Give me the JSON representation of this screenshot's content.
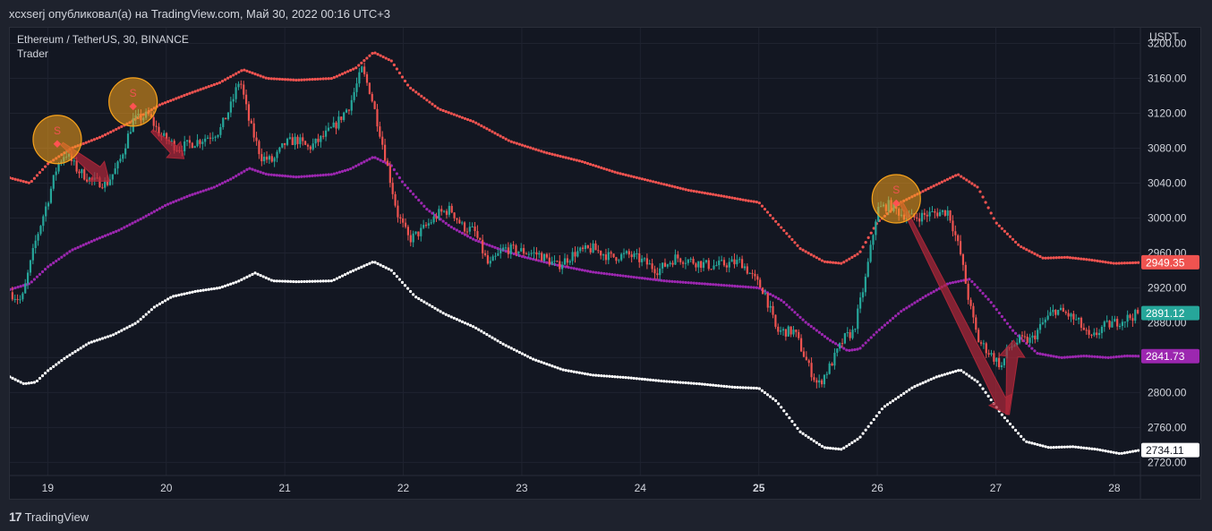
{
  "header": {
    "publish_line": "xcxserj опубликовал(а) на TradingView.com, Май 30, 2022 00:16 UTC+3"
  },
  "chart_meta": {
    "symbol_line": "Ethereum / TetherUS, 30, BINANCE",
    "indicator_name": "Trader",
    "currency": "USDT"
  },
  "footer": {
    "logo_text": "17",
    "brand": "TradingView"
  },
  "colors": {
    "background": "#131722",
    "up_candle": "#26a69a",
    "down_candle": "#ef5350",
    "upper_band": "#ef5350",
    "middle_band": "#9c27b0",
    "lower_band": "#ffffff",
    "signal_circle": "#f7a21b",
    "arrow": "#b2283a"
  },
  "chart_data": {
    "type": "candlestick",
    "yaxis": {
      "ticks": [
        "3200.00",
        "3160.00",
        "3120.00",
        "3080.00",
        "3040.00",
        "3000.00",
        "2960.00",
        "2920.00",
        "2880.00",
        "2840.00",
        "2800.00",
        "2760.00",
        "2720.00"
      ],
      "tick_values": [
        3200,
        3160,
        3120,
        3080,
        3040,
        3000,
        2960,
        2920,
        2880,
        2840,
        2800,
        2760,
        2720
      ],
      "ylim": [
        2705,
        3218
      ]
    },
    "xaxis": {
      "ticks": [
        "19",
        "20",
        "21",
        "22",
        "23",
        "24",
        "25",
        "26",
        "27",
        "28"
      ],
      "tick_positions_day": [
        19,
        20,
        21,
        22,
        23,
        24,
        25,
        26,
        27,
        28
      ],
      "bold_ticks": [
        "25"
      ],
      "xlim": [
        18.68,
        28.22
      ]
    },
    "price_labels": [
      {
        "name": "upper-band",
        "value": "2949.35",
        "bg": "#ef5350",
        "fg": "#ffffff"
      },
      {
        "name": "last-price",
        "value": "2891.12",
        "bg": "#26a69a",
        "fg": "#ffffff"
      },
      {
        "name": "middle-band",
        "value": "2841.73",
        "bg": "#9c27b0",
        "fg": "#ffffff"
      },
      {
        "name": "lower-band",
        "value": "2734.11",
        "bg": "#ffffff",
        "fg": "#131722"
      }
    ],
    "close_path": [
      [
        18.68,
        2915
      ],
      [
        18.78,
        2905
      ],
      [
        18.9,
        2975
      ],
      [
        19.0,
        3020
      ],
      [
        19.08,
        3060
      ],
      [
        19.15,
        3075
      ],
      [
        19.25,
        3055
      ],
      [
        19.38,
        3042
      ],
      [
        19.5,
        3040
      ],
      [
        19.6,
        3062
      ],
      [
        19.72,
        3112
      ],
      [
        19.85,
        3118
      ],
      [
        19.95,
        3095
      ],
      [
        20.1,
        3080
      ],
      [
        20.3,
        3090
      ],
      [
        20.45,
        3100
      ],
      [
        20.55,
        3130
      ],
      [
        20.62,
        3160
      ],
      [
        20.7,
        3110
      ],
      [
        20.8,
        3070
      ],
      [
        20.9,
        3065
      ],
      [
        21.0,
        3085
      ],
      [
        21.1,
        3090
      ],
      [
        21.2,
        3080
      ],
      [
        21.3,
        3090
      ],
      [
        21.42,
        3105
      ],
      [
        21.55,
        3130
      ],
      [
        21.65,
        3170
      ],
      [
        21.72,
        3145
      ],
      [
        21.8,
        3100
      ],
      [
        21.88,
        3050
      ],
      [
        21.95,
        3005
      ],
      [
        22.05,
        2975
      ],
      [
        22.15,
        2985
      ],
      [
        22.3,
        3005
      ],
      [
        22.4,
        3010
      ],
      [
        22.5,
        2990
      ],
      [
        22.6,
        2985
      ],
      [
        22.72,
        2945
      ],
      [
        22.85,
        2965
      ],
      [
        23.0,
        2962
      ],
      [
        23.15,
        2958
      ],
      [
        23.3,
        2945
      ],
      [
        23.45,
        2960
      ],
      [
        23.6,
        2965
      ],
      [
        23.75,
        2955
      ],
      [
        23.9,
        2958
      ],
      [
        24.0,
        2952
      ],
      [
        24.15,
        2940
      ],
      [
        24.3,
        2955
      ],
      [
        24.45,
        2950
      ],
      [
        24.6,
        2945
      ],
      [
        24.75,
        2948
      ],
      [
        24.85,
        2950
      ],
      [
        24.95,
        2932
      ],
      [
        25.05,
        2915
      ],
      [
        25.15,
        2870
      ],
      [
        25.3,
        2870
      ],
      [
        25.42,
        2830
      ],
      [
        25.5,
        2808
      ],
      [
        25.6,
        2830
      ],
      [
        25.72,
        2862
      ],
      [
        25.8,
        2870
      ],
      [
        25.9,
        2930
      ],
      [
        25.95,
        2970
      ],
      [
        26.0,
        3010
      ],
      [
        26.1,
        3015
      ],
      [
        26.2,
        3005
      ],
      [
        26.3,
        3000
      ],
      [
        26.45,
        3005
      ],
      [
        26.6,
        3008
      ],
      [
        26.7,
        2960
      ],
      [
        26.78,
        2900
      ],
      [
        26.85,
        2860
      ],
      [
        26.95,
        2845
      ],
      [
        27.05,
        2830
      ],
      [
        27.1,
        2850
      ],
      [
        27.2,
        2860
      ],
      [
        27.3,
        2860
      ],
      [
        27.4,
        2880
      ],
      [
        27.5,
        2895
      ],
      [
        27.6,
        2890
      ],
      [
        27.7,
        2880
      ],
      [
        27.8,
        2860
      ],
      [
        27.9,
        2875
      ],
      [
        28.0,
        2880
      ],
      [
        28.1,
        2885
      ],
      [
        28.22,
        2891
      ]
    ],
    "upper_band": [
      [
        18.68,
        3046
      ],
      [
        18.85,
        3040
      ],
      [
        19.0,
        3062
      ],
      [
        19.2,
        3080
      ],
      [
        19.45,
        3093
      ],
      [
        19.7,
        3110
      ],
      [
        19.95,
        3130
      ],
      [
        20.2,
        3143
      ],
      [
        20.45,
        3155
      ],
      [
        20.65,
        3170
      ],
      [
        20.85,
        3160
      ],
      [
        21.1,
        3158
      ],
      [
        21.4,
        3160
      ],
      [
        21.6,
        3172
      ],
      [
        21.75,
        3190
      ],
      [
        21.9,
        3180
      ],
      [
        22.05,
        3150
      ],
      [
        22.3,
        3125
      ],
      [
        22.6,
        3110
      ],
      [
        22.9,
        3088
      ],
      [
        23.2,
        3075
      ],
      [
        23.5,
        3065
      ],
      [
        23.8,
        3052
      ],
      [
        24.1,
        3042
      ],
      [
        24.4,
        3032
      ],
      [
        24.7,
        3025
      ],
      [
        24.9,
        3020
      ],
      [
        25.0,
        3018
      ],
      [
        25.15,
        2995
      ],
      [
        25.35,
        2965
      ],
      [
        25.55,
        2950
      ],
      [
        25.7,
        2948
      ],
      [
        25.85,
        2960
      ],
      [
        26.0,
        2995
      ],
      [
        26.2,
        3018
      ],
      [
        26.45,
        3035
      ],
      [
        26.68,
        3050
      ],
      [
        26.85,
        3035
      ],
      [
        27.0,
        2995
      ],
      [
        27.2,
        2968
      ],
      [
        27.4,
        2954
      ],
      [
        27.6,
        2955
      ],
      [
        27.8,
        2952
      ],
      [
        28.0,
        2948
      ],
      [
        28.22,
        2949
      ]
    ],
    "middle_band": [
      [
        18.68,
        2918
      ],
      [
        18.85,
        2925
      ],
      [
        19.0,
        2944
      ],
      [
        19.2,
        2963
      ],
      [
        19.4,
        2975
      ],
      [
        19.6,
        2986
      ],
      [
        19.8,
        3000
      ],
      [
        20.0,
        3015
      ],
      [
        20.2,
        3026
      ],
      [
        20.4,
        3035
      ],
      [
        20.55,
        3045
      ],
      [
        20.7,
        3057
      ],
      [
        20.85,
        3050
      ],
      [
        21.1,
        3047
      ],
      [
        21.4,
        3050
      ],
      [
        21.55,
        3056
      ],
      [
        21.75,
        3070
      ],
      [
        21.9,
        3060
      ],
      [
        22.0,
        3040
      ],
      [
        22.2,
        3010
      ],
      [
        22.4,
        2990
      ],
      [
        22.6,
        2975
      ],
      [
        22.8,
        2965
      ],
      [
        23.0,
        2956
      ],
      [
        23.3,
        2946
      ],
      [
        23.6,
        2938
      ],
      [
        23.9,
        2933
      ],
      [
        24.2,
        2928
      ],
      [
        24.5,
        2925
      ],
      [
        24.8,
        2922
      ],
      [
        25.0,
        2920
      ],
      [
        25.2,
        2905
      ],
      [
        25.4,
        2880
      ],
      [
        25.6,
        2860
      ],
      [
        25.75,
        2848
      ],
      [
        25.85,
        2850
      ],
      [
        26.0,
        2870
      ],
      [
        26.2,
        2893
      ],
      [
        26.4,
        2910
      ],
      [
        26.6,
        2925
      ],
      [
        26.78,
        2930
      ],
      [
        26.95,
        2905
      ],
      [
        27.15,
        2870
      ],
      [
        27.35,
        2845
      ],
      [
        27.55,
        2840
      ],
      [
        27.75,
        2842
      ],
      [
        27.95,
        2840
      ],
      [
        28.1,
        2842
      ],
      [
        28.22,
        2841.73
      ]
    ],
    "lower_band": [
      [
        18.68,
        2818
      ],
      [
        18.8,
        2810
      ],
      [
        18.9,
        2812
      ],
      [
        19.0,
        2825
      ],
      [
        19.15,
        2840
      ],
      [
        19.35,
        2857
      ],
      [
        19.55,
        2866
      ],
      [
        19.75,
        2880
      ],
      [
        19.9,
        2898
      ],
      [
        20.05,
        2910
      ],
      [
        20.25,
        2916
      ],
      [
        20.45,
        2920
      ],
      [
        20.6,
        2927
      ],
      [
        20.75,
        2937
      ],
      [
        20.9,
        2928
      ],
      [
        21.1,
        2927
      ],
      [
        21.4,
        2928
      ],
      [
        21.55,
        2938
      ],
      [
        21.75,
        2950
      ],
      [
        21.9,
        2940
      ],
      [
        22.1,
        2910
      ],
      [
        22.35,
        2890
      ],
      [
        22.6,
        2875
      ],
      [
        22.85,
        2855
      ],
      [
        23.1,
        2838
      ],
      [
        23.35,
        2826
      ],
      [
        23.6,
        2820
      ],
      [
        23.9,
        2817
      ],
      [
        24.2,
        2813
      ],
      [
        24.5,
        2810
      ],
      [
        24.8,
        2806
      ],
      [
        25.0,
        2805
      ],
      [
        25.15,
        2790
      ],
      [
        25.35,
        2755
      ],
      [
        25.55,
        2737
      ],
      [
        25.7,
        2735
      ],
      [
        25.85,
        2748
      ],
      [
        26.05,
        2783
      ],
      [
        26.3,
        2806
      ],
      [
        26.5,
        2818
      ],
      [
        26.7,
        2826
      ],
      [
        26.85,
        2812
      ],
      [
        27.05,
        2775
      ],
      [
        27.25,
        2744
      ],
      [
        27.45,
        2737
      ],
      [
        27.65,
        2738
      ],
      [
        27.85,
        2735
      ],
      [
        28.05,
        2730
      ],
      [
        28.22,
        2734.11
      ]
    ],
    "sell_signals": [
      {
        "label": "S",
        "day": 19.08,
        "price": 3090,
        "circle": true
      },
      {
        "label": "S",
        "day": 19.72,
        "price": 3133,
        "circle": true
      },
      {
        "label": "S",
        "day": 26.16,
        "price": 3022,
        "circle": true
      }
    ],
    "arrows": [
      {
        "from": [
          19.12,
          3085
        ],
        "to": [
          19.52,
          3042
        ]
      },
      {
        "from": [
          19.88,
          3100
        ],
        "to": [
          20.15,
          3068
        ]
      },
      {
        "from": [
          26.2,
          3018
        ],
        "to": [
          27.1,
          2775
        ]
      }
    ],
    "dip_arrow": {
      "from": [
        27.1,
        2775
      ],
      "to": [
        27.15,
        2860
      ]
    }
  }
}
